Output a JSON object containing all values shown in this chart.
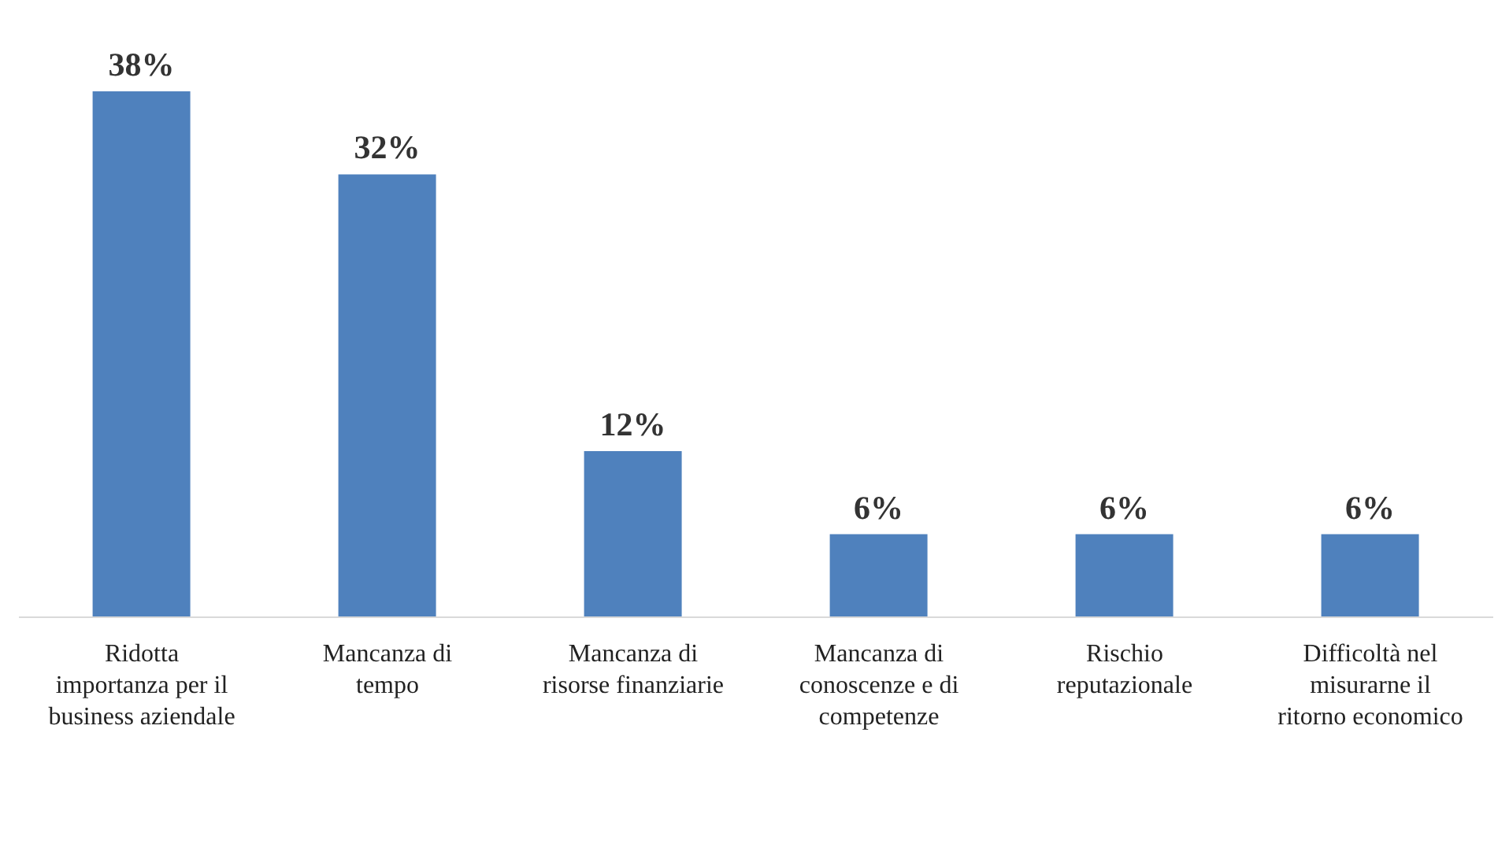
{
  "chart_data": {
    "type": "bar",
    "categories": [
      "Ridotta\nimportanza per il\nbusiness aziendale",
      "Mancanza di\ntempo",
      "Mancanza di\nrisorse finanziarie",
      "Mancanza di\nconoscenze e di\ncompetenze",
      "Rischio\nreputazionale",
      "Difficoltà nel\nmisurarne il\nritorno economico"
    ],
    "values": [
      38,
      32,
      12,
      6,
      6,
      6
    ],
    "value_labels": [
      "38%",
      "32%",
      "12%",
      "6%",
      "6%",
      "6%"
    ],
    "color": "#4f81bd"
  }
}
